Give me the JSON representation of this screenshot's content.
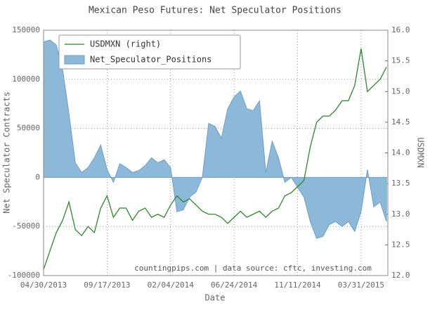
{
  "chart_data": {
    "type": "area_line",
    "title": "Mexican Peso Futures: Net Speculator Positions",
    "xlabel": "Date",
    "ylabel": "Net Speculator Contracts",
    "y2label": "USDMXN",
    "annotation": "countingpips.com | data source: cftc, investing.com",
    "x": [
      "2013-04-30",
      "2013-05-14",
      "2013-05-28",
      "2013-06-11",
      "2013-06-25",
      "2013-07-09",
      "2013-07-23",
      "2013-08-06",
      "2013-08-20",
      "2013-09-03",
      "2013-09-17",
      "2013-10-01",
      "2013-10-15",
      "2013-10-29",
      "2013-11-12",
      "2013-11-26",
      "2013-12-10",
      "2013-12-24",
      "2014-01-07",
      "2014-01-21",
      "2014-02-04",
      "2014-02-18",
      "2014-03-04",
      "2014-03-18",
      "2014-04-01",
      "2014-04-15",
      "2014-04-29",
      "2014-05-13",
      "2014-05-27",
      "2014-06-10",
      "2014-06-24",
      "2014-07-08",
      "2014-07-22",
      "2014-08-05",
      "2014-08-19",
      "2014-09-02",
      "2014-09-16",
      "2014-09-30",
      "2014-10-14",
      "2014-10-28",
      "2014-11-11",
      "2014-11-25",
      "2014-12-09",
      "2014-12-23",
      "2015-01-06",
      "2015-01-20",
      "2015-02-03",
      "2015-02-17",
      "2015-03-03",
      "2015-03-17",
      "2015-03-31",
      "2015-04-14",
      "2015-04-28",
      "2015-05-12",
      "2015-05-26"
    ],
    "series": [
      {
        "name": "USDMXN (right)",
        "kind": "line",
        "axis": "y2",
        "color": "#2a8a2a",
        "values": [
          12.1,
          12.4,
          12.7,
          12.9,
          13.2,
          12.75,
          12.65,
          12.8,
          12.7,
          13.1,
          13.3,
          12.95,
          13.1,
          13.1,
          12.9,
          13.05,
          13.1,
          12.95,
          13.0,
          12.95,
          13.15,
          13.3,
          13.2,
          13.25,
          13.15,
          13.05,
          13.0,
          13.0,
          12.95,
          12.85,
          12.95,
          13.05,
          12.95,
          13.0,
          13.05,
          12.95,
          13.05,
          13.1,
          13.3,
          13.35,
          13.45,
          13.55,
          14.1,
          14.5,
          14.6,
          14.6,
          14.7,
          14.85,
          14.85,
          15.1,
          15.7,
          15.0,
          15.1,
          15.2,
          15.4
        ]
      },
      {
        "name": "Net_Speculator_Positions",
        "kind": "area",
        "axis": "y",
        "color": "#8cb9d9",
        "values": [
          138000,
          140000,
          135000,
          110000,
          65000,
          15000,
          5000,
          10000,
          20000,
          33000,
          8000,
          -5000,
          14000,
          10000,
          5000,
          7000,
          12000,
          20000,
          15000,
          18000,
          10000,
          -35000,
          -33000,
          -20000,
          -15000,
          0,
          55000,
          52000,
          40000,
          70000,
          82000,
          88000,
          70000,
          68000,
          78000,
          5000,
          37000,
          20000,
          -5000,
          0,
          -10000,
          -20000,
          -45000,
          -62000,
          -60000,
          -48000,
          -45000,
          -50000,
          -45000,
          -55000,
          -35000,
          8000,
          -30000,
          -25000,
          -45000
        ]
      }
    ],
    "xlim": [
      "2013-04-30",
      "2015-05-29"
    ],
    "xticks": [
      {
        "value": "2013-04-30",
        "label": "04/30/2013"
      },
      {
        "value": "2013-09-17",
        "label": "09/17/2013"
      },
      {
        "value": "2014-02-04",
        "label": "02/04/2014"
      },
      {
        "value": "2014-06-24",
        "label": "06/24/2014"
      },
      {
        "value": "2014-11-11",
        "label": "11/11/2014"
      },
      {
        "value": "2015-03-31",
        "label": "03/31/2015"
      }
    ],
    "ylim": [
      -100000,
      150000
    ],
    "yticks": [
      -100000,
      -50000,
      0,
      50000,
      100000,
      150000
    ],
    "y2lim": [
      12,
      16
    ],
    "y2ticks": [
      {
        "value": 12,
        "label": "12.0"
      },
      {
        "value": 12.5,
        "label": "12.5"
      },
      {
        "value": 13,
        "label": "13.0"
      },
      {
        "value": 13.5,
        "label": "13.5"
      },
      {
        "value": 14,
        "label": "14.0"
      },
      {
        "value": 14.5,
        "label": "14.5"
      },
      {
        "value": 15,
        "label": "15.0"
      },
      {
        "value": 15.5,
        "label": "15.5"
      },
      {
        "value": 16,
        "label": "16.0"
      }
    ],
    "grid": true,
    "legend": "upper left"
  }
}
